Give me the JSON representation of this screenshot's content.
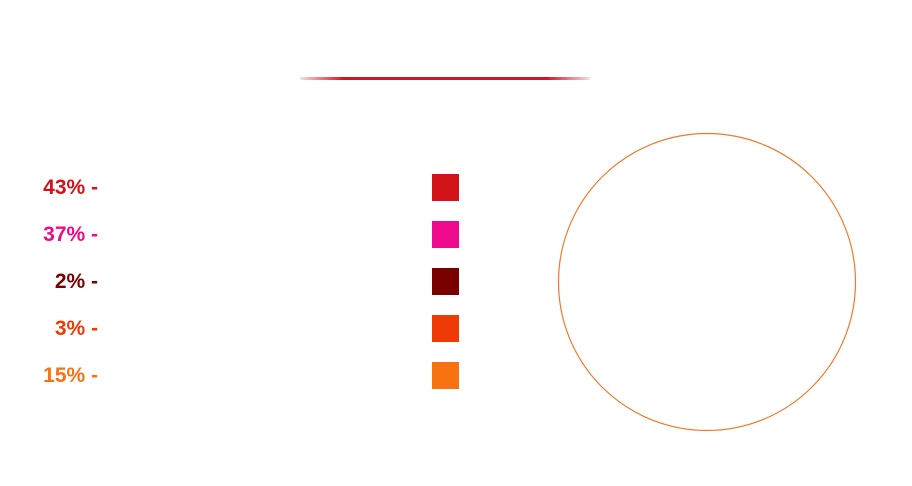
{
  "chart_data": {
    "type": "pie",
    "title": "",
    "slices": [
      {
        "label": "",
        "percent_label": "43% -",
        "value": 43,
        "color": "#d21319"
      },
      {
        "label": "",
        "percent_label": "37% -",
        "value": 37,
        "color": "#ef0a8c"
      },
      {
        "label": "",
        "percent_label": "2% -",
        "value": 2,
        "color": "#7a0000"
      },
      {
        "label": "",
        "percent_label": "3% -",
        "value": 3,
        "color": "#ee3a05"
      },
      {
        "label": "",
        "percent_label": "15% -",
        "value": 15,
        "color": "#f97212"
      }
    ],
    "pie_outline_color": "#f07a2a",
    "pie_rendered": "outline-only",
    "legend_position": "left"
  }
}
